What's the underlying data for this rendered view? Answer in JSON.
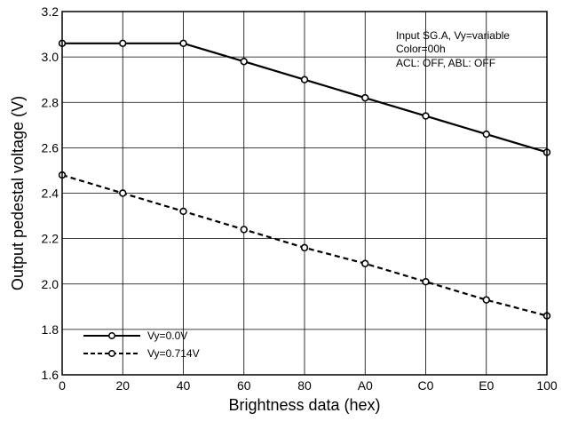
{
  "chart_data": {
    "type": "line",
    "xlabel": "Brightness data (hex)",
    "ylabel": "Output pedestal voltage (V)",
    "x_tick_labels": [
      "0",
      "20",
      "40",
      "60",
      "80",
      "A0",
      "C0",
      "E0",
      "100"
    ],
    "y_tick_labels": [
      "1.6",
      "1.8",
      "2.0",
      "2.2",
      "2.4",
      "2.6",
      "2.8",
      "3.0",
      "3.2"
    ],
    "ylim": [
      1.6,
      3.2
    ],
    "grid": true,
    "legend_position": "bottom-left",
    "annotation": [
      "Input SG.A, Vy=variable",
      "Color=00h",
      "ACL: OFF, ABL: OFF"
    ],
    "series": [
      {
        "name": "Vy=0.0V",
        "line_style": "solid",
        "color": "#000000",
        "values": [
          3.06,
          3.06,
          3.06,
          2.98,
          2.9,
          2.82,
          2.74,
          2.66,
          2.58
        ]
      },
      {
        "name": "Vy=0.714V",
        "line_style": "dashed",
        "color": "#000000",
        "values": [
          2.48,
          2.4,
          2.32,
          2.24,
          2.16,
          2.09,
          2.01,
          1.93,
          1.86
        ]
      }
    ]
  }
}
